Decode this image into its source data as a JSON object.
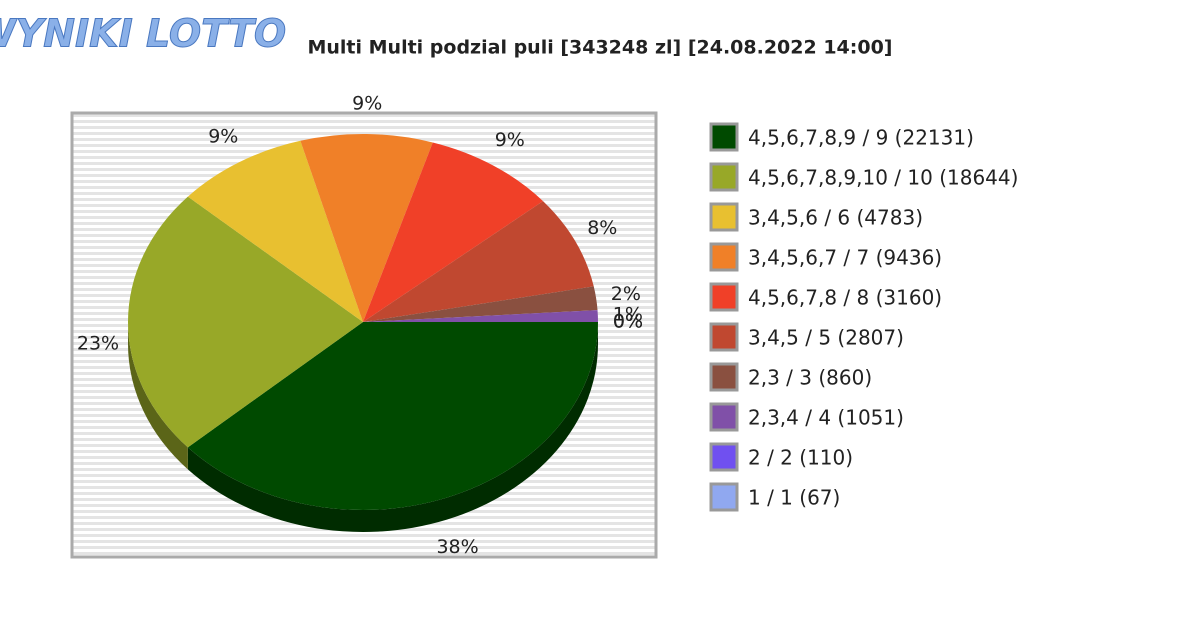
{
  "logo": "WYNIKI LOTTO",
  "chart_data": {
    "type": "pie",
    "title": "Multi Multi podzial puli [343248 zl] [24.08.2022 14:00]",
    "categories": [
      "4,5,6,7,8,9 / 9 (22131)",
      "4,5,6,7,8,9,10 / 10 (18644)",
      "3,4,5,6 / 6 (4783)",
      "3,4,5,6,7 / 7 (9436)",
      "4,5,6,7,8 / 8 (3160)",
      "3,4,5 / 5 (2807)",
      "2,3 / 3 (860)",
      "2,3,4 / 4 (1051)",
      "2 / 2 (110)",
      "1 / 1 (67)"
    ],
    "values": [
      38,
      23,
      9,
      9,
      9,
      8,
      2,
      1,
      0,
      0
    ],
    "value_labels": [
      "38%",
      "23%",
      "9%",
      "9%",
      "9%",
      "8%",
      "2%",
      "1%",
      "0%",
      "0%"
    ],
    "colors": [
      "#004a00",
      "#98a828",
      "#e8c030",
      "#f08028",
      "#f04028",
      "#c04830",
      "#8a5040",
      "#8050a8",
      "#7050f0",
      "#90a8f0"
    ]
  }
}
